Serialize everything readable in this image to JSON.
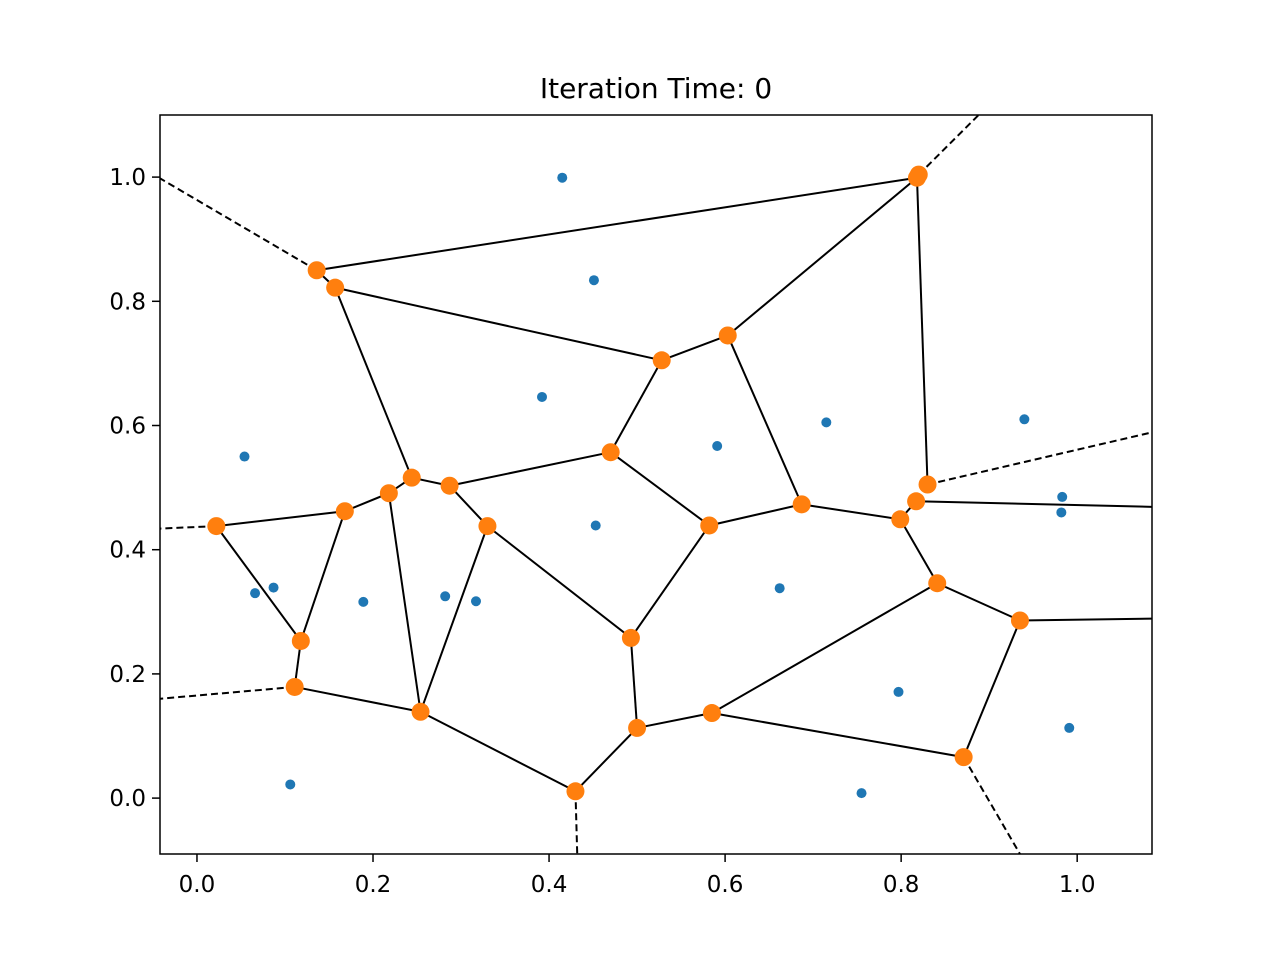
{
  "chart_data": {
    "type": "scatter",
    "title": "Iteration Time: 0",
    "xlabel": "",
    "ylabel": "",
    "xlim": [
      -0.042,
      1.085
    ],
    "ylim": [
      -0.09,
      1.1
    ],
    "xticks": [
      0.0,
      0.2,
      0.4,
      0.6,
      0.8,
      1.0
    ],
    "yticks": [
      0.0,
      0.2,
      0.4,
      0.6,
      0.8,
      1.0
    ],
    "xtick_labels": [
      "0.0",
      "0.2",
      "0.4",
      "0.6",
      "0.8",
      "1.0"
    ],
    "ytick_labels": [
      "0.0",
      "0.2",
      "0.4",
      "0.6",
      "0.8",
      "1.0"
    ],
    "grid": false,
    "colors": {
      "points": "#1f77b4",
      "vertices": "#ff7f0e",
      "edges": "#000000"
    },
    "points": [
      [
        0.415,
        0.999
      ],
      [
        0.451,
        0.834
      ],
      [
        0.392,
        0.646
      ],
      [
        0.054,
        0.55
      ],
      [
        0.591,
        0.567
      ],
      [
        0.715,
        0.605
      ],
      [
        0.94,
        0.61
      ],
      [
        0.983,
        0.485
      ],
      [
        0.982,
        0.46
      ],
      [
        0.453,
        0.439
      ],
      [
        0.066,
        0.33
      ],
      [
        0.087,
        0.339
      ],
      [
        0.189,
        0.316
      ],
      [
        0.282,
        0.325
      ],
      [
        0.317,
        0.317
      ],
      [
        0.662,
        0.338
      ],
      [
        0.797,
        0.171
      ],
      [
        0.991,
        0.113
      ],
      [
        0.106,
        0.022
      ],
      [
        0.755,
        0.008
      ]
    ],
    "vertices": [
      [
        0.136,
        0.85
      ],
      [
        0.157,
        0.822
      ],
      [
        0.818,
        0.999
      ],
      [
        0.82,
        1.004
      ],
      [
        0.528,
        0.705
      ],
      [
        0.603,
        0.745
      ],
      [
        0.47,
        0.557
      ],
      [
        0.244,
        0.516
      ],
      [
        0.287,
        0.503
      ],
      [
        0.218,
        0.491
      ],
      [
        0.168,
        0.462
      ],
      [
        0.022,
        0.438
      ],
      [
        0.33,
        0.438
      ],
      [
        0.582,
        0.439
      ],
      [
        0.687,
        0.473
      ],
      [
        0.83,
        0.505
      ],
      [
        0.817,
        0.478
      ],
      [
        0.799,
        0.449
      ],
      [
        0.841,
        0.346
      ],
      [
        0.935,
        0.286
      ],
      [
        0.118,
        0.253
      ],
      [
        0.111,
        0.179
      ],
      [
        0.254,
        0.139
      ],
      [
        0.493,
        0.258
      ],
      [
        0.5,
        0.113
      ],
      [
        0.585,
        0.137
      ],
      [
        0.871,
        0.066
      ],
      [
        0.43,
        0.011
      ]
    ],
    "edges": [
      [
        [
          0.136,
          0.85
        ],
        [
          0.818,
          0.999
        ]
      ],
      [
        [
          0.136,
          0.85
        ],
        [
          0.157,
          0.822
        ]
      ],
      [
        [
          0.157,
          0.822
        ],
        [
          0.528,
          0.705
        ]
      ],
      [
        [
          0.528,
          0.705
        ],
        [
          0.603,
          0.745
        ]
      ],
      [
        [
          0.603,
          0.745
        ],
        [
          0.818,
          0.999
        ]
      ],
      [
        [
          0.818,
          0.999
        ],
        [
          0.83,
          0.505
        ]
      ],
      [
        [
          0.157,
          0.822
        ],
        [
          0.244,
          0.516
        ]
      ],
      [
        [
          0.528,
          0.705
        ],
        [
          0.47,
          0.557
        ]
      ],
      [
        [
          0.603,
          0.745
        ],
        [
          0.687,
          0.473
        ]
      ],
      [
        [
          0.244,
          0.516
        ],
        [
          0.287,
          0.503
        ]
      ],
      [
        [
          0.287,
          0.503
        ],
        [
          0.47,
          0.557
        ]
      ],
      [
        [
          0.244,
          0.516
        ],
        [
          0.218,
          0.491
        ]
      ],
      [
        [
          0.218,
          0.491
        ],
        [
          0.168,
          0.462
        ]
      ],
      [
        [
          0.168,
          0.462
        ],
        [
          0.022,
          0.438
        ]
      ],
      [
        [
          0.287,
          0.503
        ],
        [
          0.33,
          0.438
        ]
      ],
      [
        [
          0.47,
          0.557
        ],
        [
          0.582,
          0.439
        ]
      ],
      [
        [
          0.582,
          0.439
        ],
        [
          0.687,
          0.473
        ]
      ],
      [
        [
          0.687,
          0.473
        ],
        [
          0.799,
          0.449
        ]
      ],
      [
        [
          0.799,
          0.449
        ],
        [
          0.817,
          0.478
        ]
      ],
      [
        [
          0.817,
          0.478
        ],
        [
          1.085,
          0.469
        ]
      ],
      [
        [
          0.799,
          0.449
        ],
        [
          0.841,
          0.346
        ]
      ],
      [
        [
          0.841,
          0.346
        ],
        [
          0.935,
          0.286
        ]
      ],
      [
        [
          0.935,
          0.286
        ],
        [
          1.085,
          0.289
        ]
      ],
      [
        [
          0.841,
          0.346
        ],
        [
          0.585,
          0.137
        ]
      ],
      [
        [
          0.935,
          0.286
        ],
        [
          0.871,
          0.066
        ]
      ],
      [
        [
          0.871,
          0.066
        ],
        [
          0.585,
          0.137
        ]
      ],
      [
        [
          0.585,
          0.137
        ],
        [
          0.5,
          0.113
        ]
      ],
      [
        [
          0.5,
          0.113
        ],
        [
          0.493,
          0.258
        ]
      ],
      [
        [
          0.493,
          0.258
        ],
        [
          0.582,
          0.439
        ]
      ],
      [
        [
          0.493,
          0.258
        ],
        [
          0.33,
          0.438
        ]
      ],
      [
        [
          0.33,
          0.438
        ],
        [
          0.254,
          0.139
        ]
      ],
      [
        [
          0.218,
          0.491
        ],
        [
          0.254,
          0.139
        ]
      ],
      [
        [
          0.168,
          0.462
        ],
        [
          0.118,
          0.253
        ]
      ],
      [
        [
          0.022,
          0.438
        ],
        [
          0.118,
          0.253
        ]
      ],
      [
        [
          0.118,
          0.253
        ],
        [
          0.111,
          0.179
        ]
      ],
      [
        [
          0.111,
          0.179
        ],
        [
          0.254,
          0.139
        ]
      ],
      [
        [
          0.254,
          0.139
        ],
        [
          0.43,
          0.011
        ]
      ],
      [
        [
          0.43,
          0.011
        ],
        [
          0.5,
          0.113
        ]
      ]
    ],
    "ridges": [
      [
        [
          0.136,
          0.85
        ],
        [
          -0.042,
          0.998
        ]
      ],
      [
        [
          0.82,
          1.004
        ],
        [
          0.888,
          1.1
        ]
      ],
      [
        [
          0.83,
          0.505
        ],
        [
          1.085,
          0.589
        ]
      ],
      [
        [
          0.022,
          0.438
        ],
        [
          -0.042,
          0.434
        ]
      ],
      [
        [
          0.111,
          0.179
        ],
        [
          -0.042,
          0.16
        ]
      ],
      [
        [
          0.43,
          0.011
        ],
        [
          0.432,
          -0.09
        ]
      ],
      [
        [
          0.871,
          0.066
        ],
        [
          0.935,
          -0.09
        ]
      ]
    ]
  }
}
